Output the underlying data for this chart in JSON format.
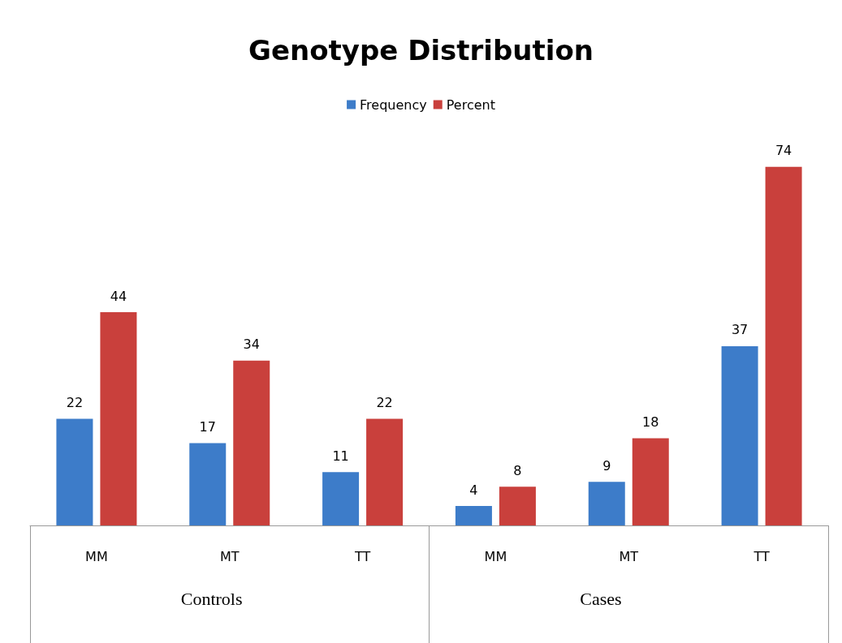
{
  "chart_data": {
    "type": "bar",
    "title": "Genotype Distribution",
    "categories": [
      "MM",
      "MT",
      "TT",
      "MM",
      "MT",
      "TT"
    ],
    "series": [
      {
        "name": "Frequency",
        "color": "#3d7cc9",
        "values": [
          22,
          17,
          11,
          4,
          9,
          37
        ]
      },
      {
        "name": "Percent",
        "color": "#c9403c",
        "values": [
          44,
          34,
          22,
          8,
          18,
          74
        ]
      }
    ],
    "annotations": [
      "Controls",
      "Cases"
    ],
    "data_labels": true,
    "legend": "top",
    "grid": false
  }
}
